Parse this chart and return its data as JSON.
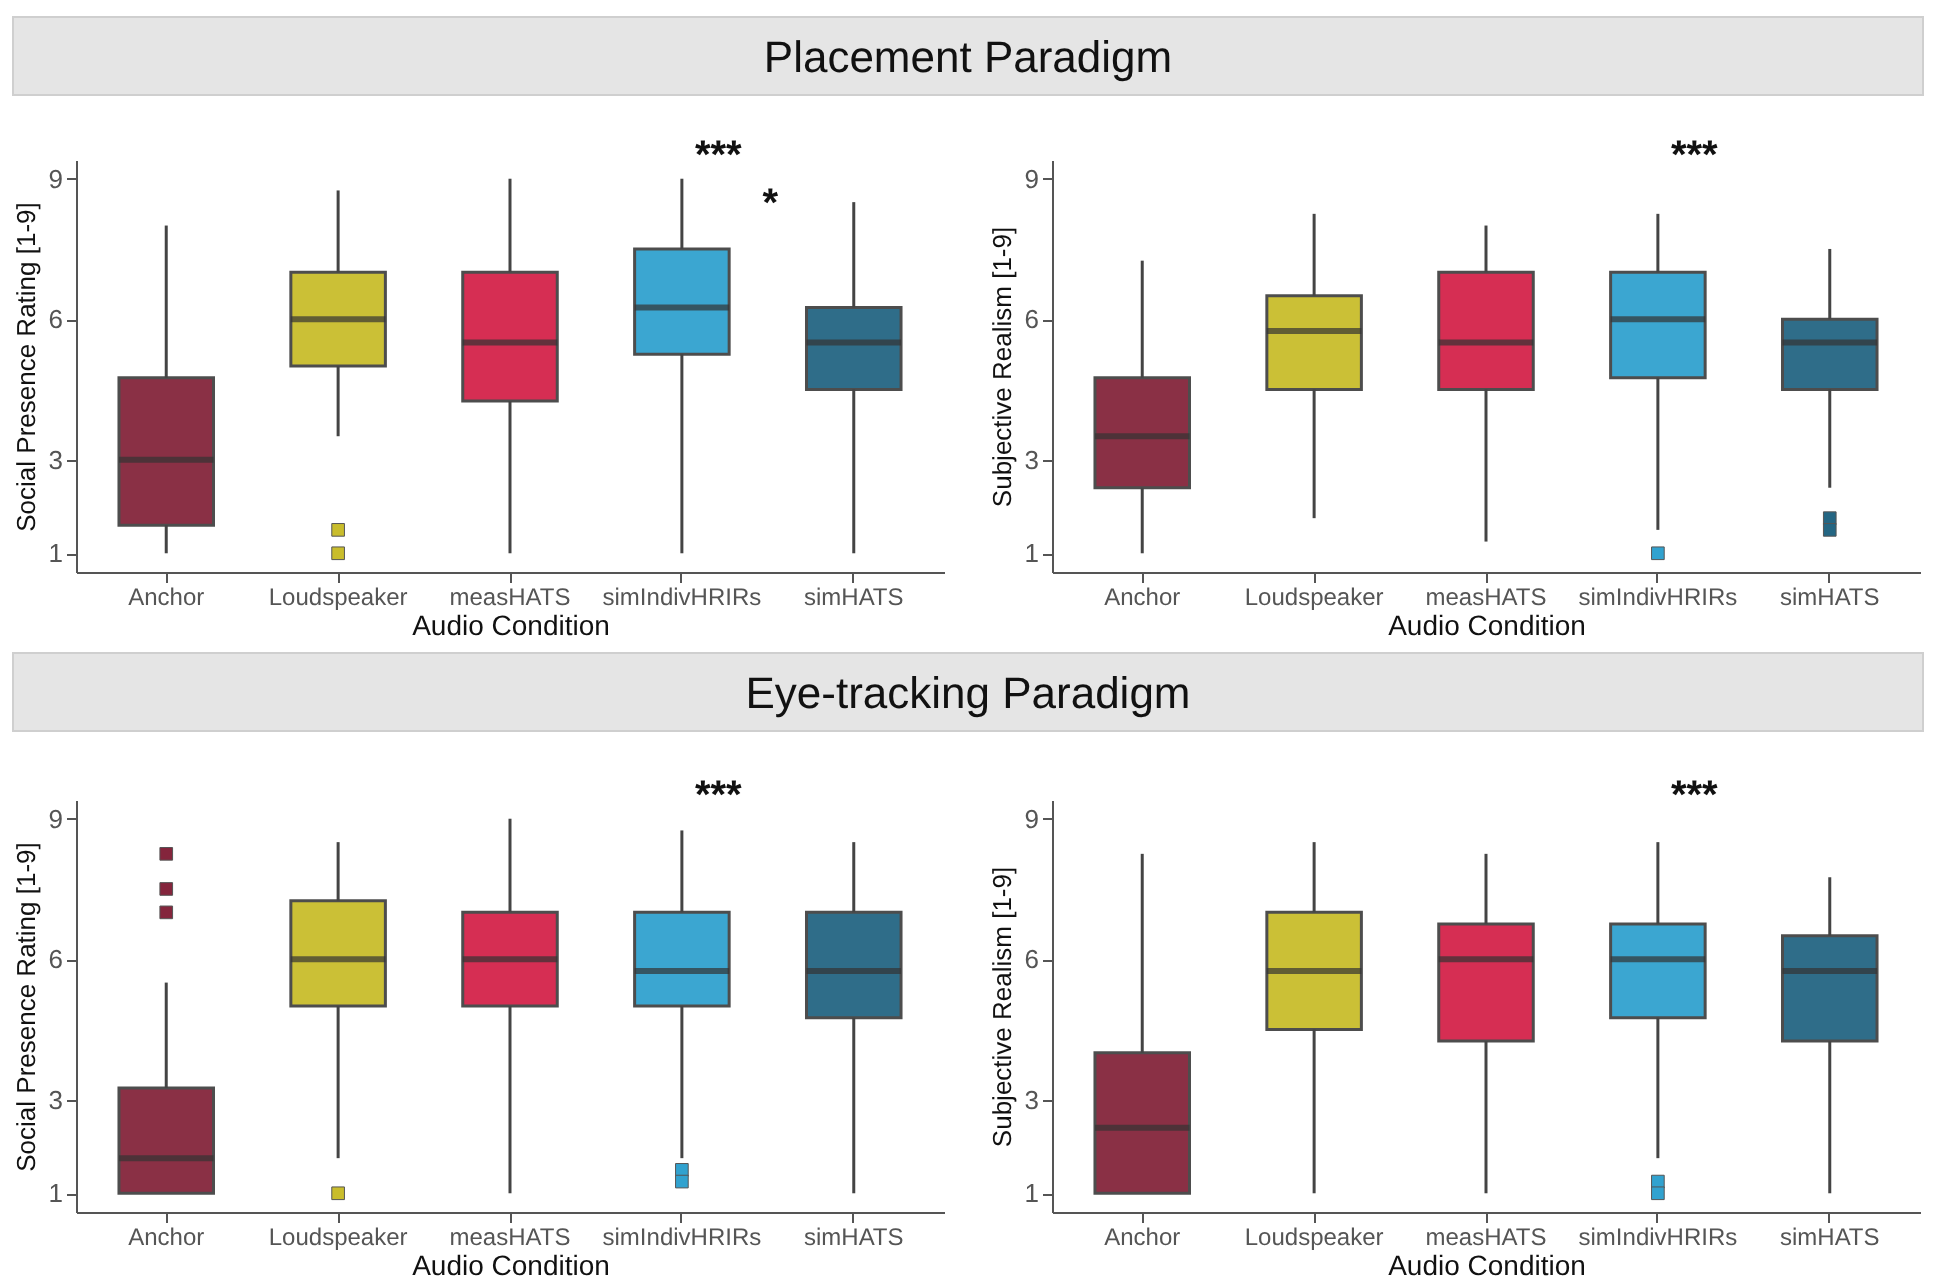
{
  "chart_data": [
    {
      "type": "box",
      "title": "Placement Paradigm",
      "xlabel": "Audio Condition",
      "ylabel": "Social Presence Rating [1-9]",
      "categories": [
        "Anchor",
        "Loudspeaker",
        "measHATS",
        "simIndivHRIRs",
        "simHATS"
      ],
      "colors": [
        "#84253c",
        "#c9bd2c",
        "#d4234a",
        "#31a2cf",
        "#246683"
      ],
      "ylim": [
        0.6,
        9.4
      ],
      "yticks": [
        1,
        3,
        6,
        9
      ],
      "grid": false,
      "annotations": [
        "***",
        "*"
      ],
      "boxes": [
        {
          "low": 1,
          "q1": 1.6,
          "median": 3,
          "q3": 4.75,
          "high": 8
        },
        {
          "low": 3.5,
          "q1": 5,
          "median": 6,
          "q3": 7,
          "high": 8.75,
          "outliers": [
            1.5,
            1
          ]
        },
        {
          "low": 1,
          "q1": 4.25,
          "median": 5.5,
          "q3": 7,
          "high": 9
        },
        {
          "low": 1,
          "q1": 5.25,
          "median": 6.25,
          "q3": 7.5,
          "high": 9
        },
        {
          "low": 1,
          "q1": 4.5,
          "median": 5.5,
          "q3": 6.25,
          "high": 8.5
        }
      ]
    },
    {
      "type": "box",
      "xlabel": "Audio Condition",
      "ylabel": "Subjective Realism [1-9]",
      "categories": [
        "Anchor",
        "Loudspeaker",
        "measHATS",
        "simIndivHRIRs",
        "simHATS"
      ],
      "colors": [
        "#84253c",
        "#c9bd2c",
        "#d4234a",
        "#31a2cf",
        "#246683"
      ],
      "ylim": [
        0.6,
        9.4
      ],
      "yticks": [
        1,
        3,
        6,
        9
      ],
      "grid": false,
      "annotations": [
        "***"
      ],
      "boxes": [
        {
          "low": 1,
          "q1": 2.4,
          "median": 3.5,
          "q3": 4.75,
          "high": 7.25
        },
        {
          "low": 1.75,
          "q1": 4.5,
          "median": 5.75,
          "q3": 6.5,
          "high": 8.25
        },
        {
          "low": 1.25,
          "q1": 4.5,
          "median": 5.5,
          "q3": 7,
          "high": 8
        },
        {
          "low": 1.5,
          "q1": 4.75,
          "median": 6,
          "q3": 7,
          "high": 8.25,
          "outliers": [
            1
          ]
        },
        {
          "low": 2.4,
          "q1": 4.5,
          "median": 5.5,
          "q3": 6,
          "high": 7.5,
          "outliers": [
            1.75,
            1.5
          ]
        }
      ]
    },
    {
      "type": "box",
      "title": "Eye-tracking Paradigm",
      "xlabel": "Audio Condition",
      "ylabel": "Social Presence Rating [1-9]",
      "categories": [
        "Anchor",
        "Loudspeaker",
        "measHATS",
        "simIndivHRIRs",
        "simHATS"
      ],
      "colors": [
        "#84253c",
        "#c9bd2c",
        "#d4234a",
        "#31a2cf",
        "#246683"
      ],
      "ylim": [
        0.6,
        9.4
      ],
      "yticks": [
        1,
        3,
        6,
        9
      ],
      "grid": false,
      "annotations": [
        "***"
      ],
      "boxes": [
        {
          "low": 1,
          "q1": 1,
          "median": 1.75,
          "q3": 3.25,
          "high": 5.5,
          "outliers": [
            7,
            7.5,
            8.25
          ]
        },
        {
          "low": 1.75,
          "q1": 5,
          "median": 6,
          "q3": 7.25,
          "high": 8.5,
          "outliers": [
            1
          ]
        },
        {
          "low": 1,
          "q1": 5,
          "median": 6,
          "q3": 7,
          "high": 9
        },
        {
          "low": 1.75,
          "q1": 5,
          "median": 5.75,
          "q3": 7,
          "high": 8.75,
          "outliers": [
            1.5,
            1.25
          ]
        },
        {
          "low": 1,
          "q1": 4.75,
          "median": 5.75,
          "q3": 7,
          "high": 8.5
        }
      ]
    },
    {
      "type": "box",
      "xlabel": "Audio Condition",
      "ylabel": "Subjective Realism [1-9]",
      "categories": [
        "Anchor",
        "Loudspeaker",
        "measHATS",
        "simIndivHRIRs",
        "simHATS"
      ],
      "colors": [
        "#84253c",
        "#c9bd2c",
        "#d4234a",
        "#31a2cf",
        "#246683"
      ],
      "ylim": [
        0.6,
        9.4
      ],
      "yticks": [
        1,
        3,
        6,
        9
      ],
      "grid": false,
      "annotations": [
        "***"
      ],
      "boxes": [
        {
          "low": 1,
          "q1": 1,
          "median": 2.4,
          "q3": 4,
          "high": 8.25
        },
        {
          "low": 1,
          "q1": 4.5,
          "median": 5.75,
          "q3": 7,
          "high": 8.5
        },
        {
          "low": 1,
          "q1": 4.25,
          "median": 6,
          "q3": 6.75,
          "high": 8.25
        },
        {
          "low": 1.75,
          "q1": 4.75,
          "median": 6,
          "q3": 6.75,
          "high": 8.5,
          "outliers": [
            1.25,
            1
          ]
        },
        {
          "low": 1,
          "q1": 4.25,
          "median": 5.75,
          "q3": 6.5,
          "high": 7.75
        }
      ]
    }
  ]
}
